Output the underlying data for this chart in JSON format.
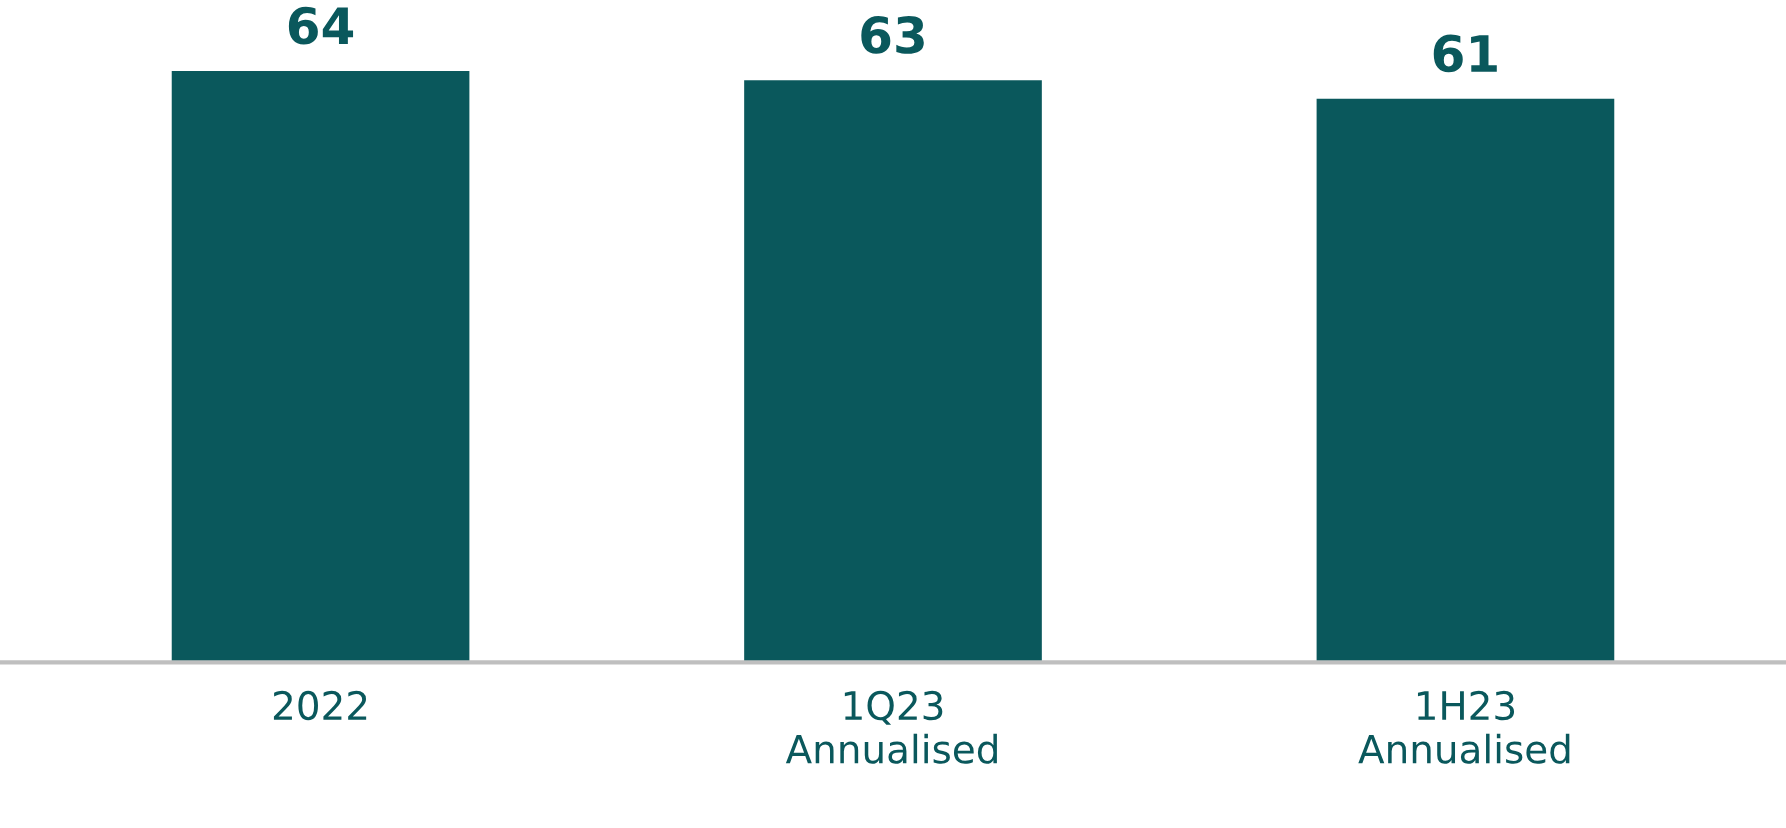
{
  "chart_data": {
    "type": "bar",
    "categories": [
      "2022",
      "1Q23\nAnnualised",
      "1H23\nAnnualised"
    ],
    "values": [
      64,
      63,
      61
    ],
    "color": "#0a585c",
    "data_labels": true,
    "grid": false,
    "legend": false
  }
}
